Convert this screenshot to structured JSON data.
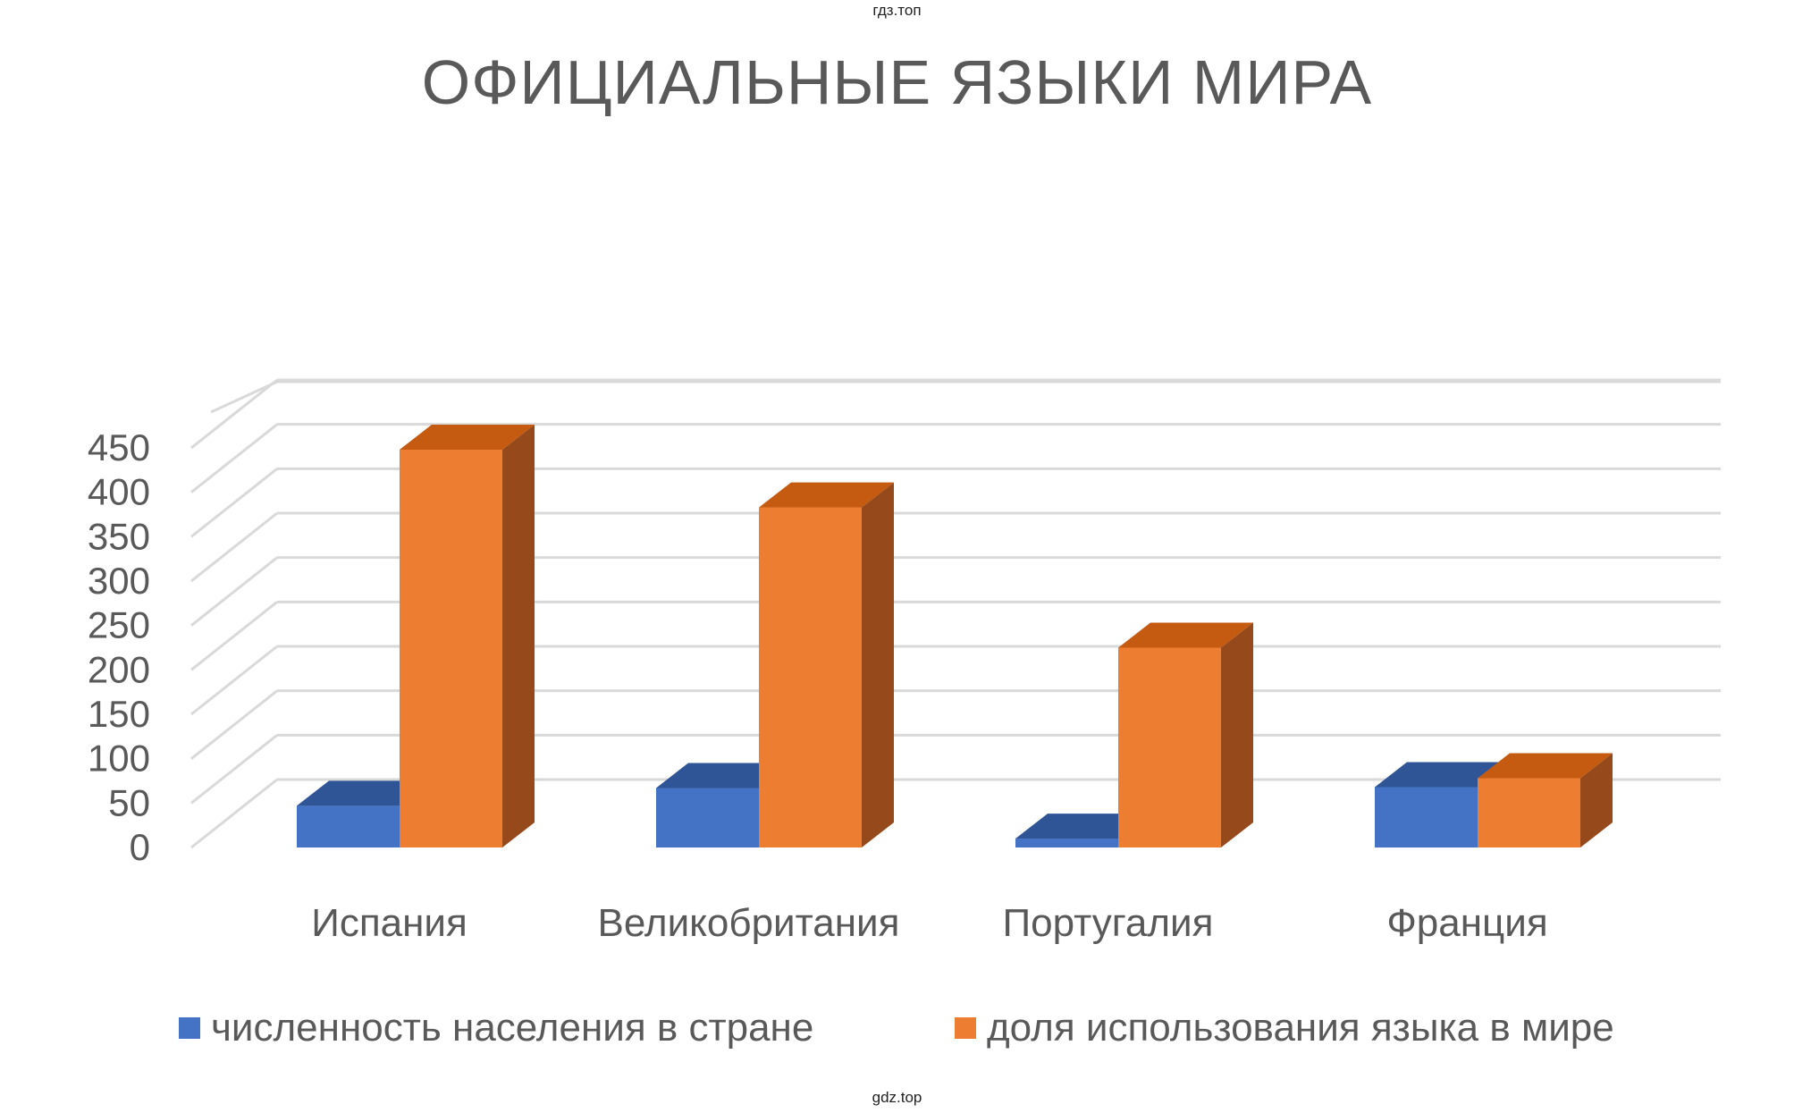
{
  "watermark_top": "гдз.топ",
  "watermark_bottom": "gdz.top",
  "chart_data": {
    "type": "bar",
    "title": "ОФИЦИАЛЬНЫЕ ЯЗЫКИ МИРА",
    "categories": [
      "Испания",
      "Великобритания",
      "Португалия",
      "Франция"
    ],
    "series": [
      {
        "name": "численность населения в стране",
        "values": [
          47,
          67,
          10,
          68
        ],
        "color": "#4472C4",
        "side_color": "#2F528F",
        "top_color": "#2F5597"
      },
      {
        "name": "доля использования языка в мире",
        "values": [
          448,
          383,
          225,
          78
        ],
        "color": "#ED7D31",
        "side_color": "#964A1C",
        "top_color": "#C55A11"
      }
    ],
    "ylim": [
      0,
      450
    ],
    "yticks": [
      "0",
      "50",
      "100",
      "150",
      "200",
      "250",
      "300",
      "350",
      "400",
      "450"
    ],
    "grid": true,
    "style": "3d-clustered-column",
    "legend_position": "bottom"
  }
}
